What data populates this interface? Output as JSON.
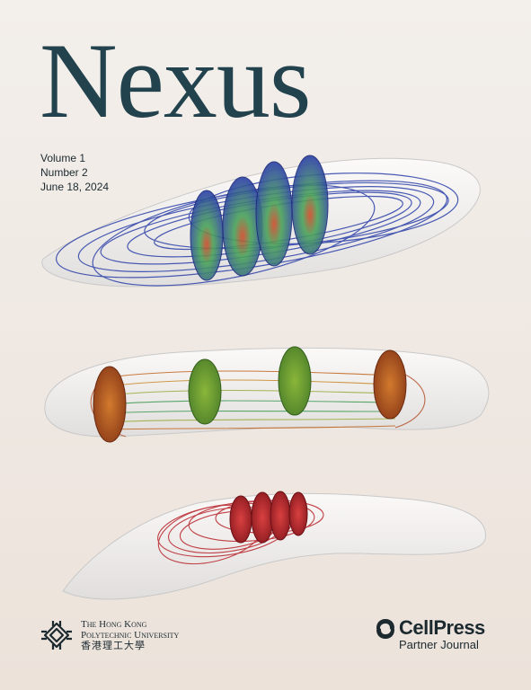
{
  "cover": {
    "title": "Nexus",
    "volume": "Volume 1",
    "number": "Number 2",
    "date": "June 18, 2024"
  },
  "publisher": {
    "university_line1": "The Hong Kong",
    "university_line2": "Polytechnic University",
    "university_cn": "香港理工大學",
    "partner_name": "CellPress",
    "partner_sub": "Partner Journal"
  },
  "colors": {
    "title": "#22424d",
    "blue_streamlines": "#2b3fa8",
    "orange_streamlines": "#c0651f",
    "green_streamlines": "#3f9a52",
    "red_streamlines": "#b8222a"
  }
}
